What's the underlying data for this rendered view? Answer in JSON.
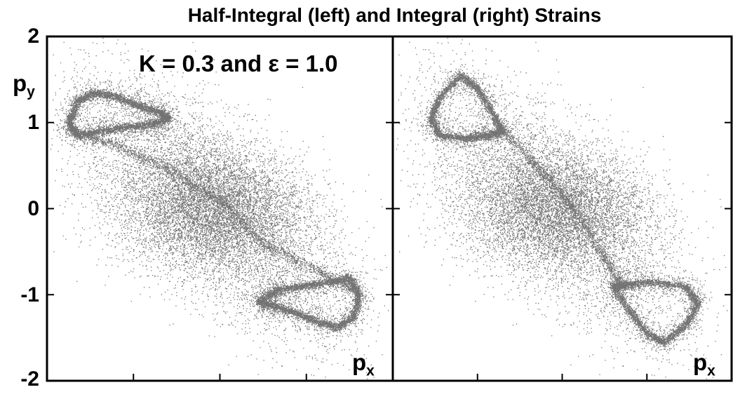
{
  "chart_data": {
    "type": "scatter",
    "title": "Half-Integral (left) and Integral (right) Strains",
    "annotation": "K = 0.3 and ε = 1.0",
    "ylabel_main": "p",
    "ylabel_sub": "y",
    "xlabel_main": "p",
    "xlabel_sub": "x",
    "ylim": [
      -2,
      2
    ],
    "yticks": [
      "2",
      "1",
      "0",
      "-1",
      "-2"
    ],
    "grid": false,
    "legend": "none",
    "point_color": "#000000",
    "panels": [
      {
        "name": "Half-Integral",
        "position": "left",
        "core_density": {
          "center": [
            -0.1,
            0.0
          ],
          "spread": [
            0.55,
            0.33
          ]
        },
        "loop_upper": [
          [
            -1.65,
            1.25
          ],
          [
            -1.45,
            1.35
          ],
          [
            -1.2,
            1.3
          ],
          [
            -0.95,
            1.2
          ],
          [
            -0.7,
            1.12
          ],
          [
            -0.6,
            1.05
          ],
          [
            -0.8,
            0.98
          ],
          [
            -1.1,
            0.95
          ],
          [
            -1.4,
            0.9
          ],
          [
            -1.65,
            0.85
          ],
          [
            -1.75,
            1.0
          ],
          [
            -1.65,
            1.25
          ]
        ],
        "loop_lower": [
          [
            1.55,
            -1.25
          ],
          [
            1.35,
            -1.38
          ],
          [
            1.1,
            -1.3
          ],
          [
            0.85,
            -1.2
          ],
          [
            0.6,
            -1.12
          ],
          [
            0.45,
            -1.08
          ],
          [
            0.65,
            -0.95
          ],
          [
            0.95,
            -0.9
          ],
          [
            1.25,
            -0.85
          ],
          [
            1.5,
            -0.8
          ],
          [
            1.6,
            -1.0
          ],
          [
            1.55,
            -1.25
          ]
        ],
        "filament": [
          [
            -1.75,
            0.9
          ],
          [
            -1.2,
            0.75
          ],
          [
            -0.6,
            0.45
          ],
          [
            0.0,
            0.1
          ],
          [
            0.5,
            -0.4
          ],
          [
            1.1,
            -0.7
          ],
          [
            1.55,
            -0.95
          ]
        ]
      },
      {
        "name": "Integral",
        "position": "right",
        "core_density": {
          "center": [
            -0.1,
            0.0
          ],
          "spread": [
            0.55,
            0.33
          ]
        },
        "loop_upper": [
          [
            -1.2,
            1.55
          ],
          [
            -1.0,
            1.4
          ],
          [
            -0.85,
            1.15
          ],
          [
            -0.7,
            0.9
          ],
          [
            -0.9,
            0.85
          ],
          [
            -1.15,
            0.82
          ],
          [
            -1.45,
            0.85
          ],
          [
            -1.55,
            1.05
          ],
          [
            -1.45,
            1.3
          ],
          [
            -1.2,
            1.55
          ]
        ],
        "loop_lower": [
          [
            1.2,
            -1.55
          ],
          [
            1.0,
            -1.45
          ],
          [
            0.8,
            -1.2
          ],
          [
            0.6,
            -0.9
          ],
          [
            0.75,
            -0.88
          ],
          [
            1.05,
            -0.85
          ],
          [
            1.45,
            -0.9
          ],
          [
            1.6,
            -1.1
          ],
          [
            1.45,
            -1.35
          ],
          [
            1.2,
            -1.55
          ]
        ],
        "filament": [
          [
            -0.75,
            0.95
          ],
          [
            -0.3,
            0.5
          ],
          [
            0.1,
            0.05
          ],
          [
            0.45,
            -0.5
          ],
          [
            0.7,
            -0.9
          ]
        ]
      }
    ]
  }
}
